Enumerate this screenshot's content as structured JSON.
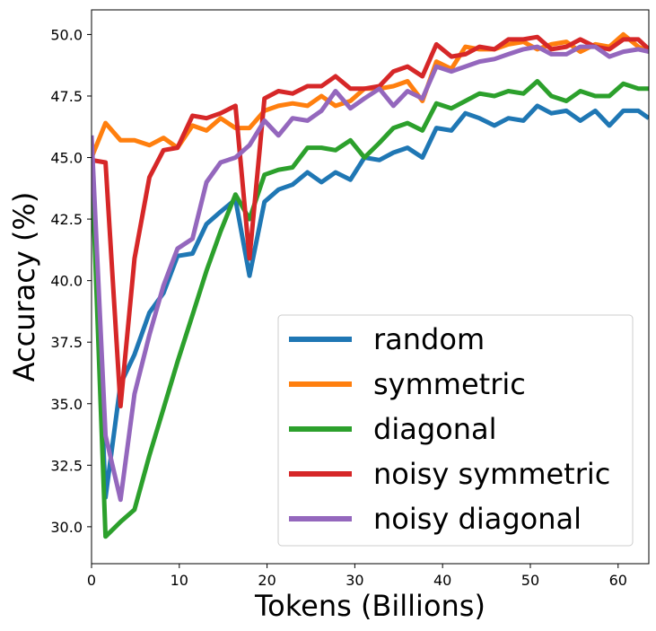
{
  "chart_data": {
    "type": "line",
    "title": "",
    "xlabel": "Tokens (Billions)",
    "ylabel": "Accuracy (%)",
    "xlim": [
      0,
      63.5
    ],
    "ylim": [
      28.5,
      51.0
    ],
    "xticks": [
      0,
      10,
      20,
      30,
      40,
      50,
      60
    ],
    "yticks": [
      30.0,
      32.5,
      35.0,
      37.5,
      40.0,
      42.5,
      45.0,
      47.5,
      50.0
    ],
    "xtick_labels": [
      "0",
      "10",
      "20",
      "30",
      "40",
      "50",
      "60"
    ],
    "ytick_labels": [
      "30.0",
      "32.5",
      "35.0",
      "37.5",
      "40.0",
      "42.5",
      "45.0",
      "47.5",
      "50.0"
    ],
    "grid": false,
    "legend_position": "lower-right",
    "x": [
      0,
      1.6,
      3.3,
      4.9,
      6.6,
      8.2,
      9.8,
      11.5,
      13.1,
      14.7,
      16.4,
      18.0,
      19.7,
      21.3,
      22.9,
      24.6,
      26.2,
      27.8,
      29.5,
      31.1,
      32.8,
      34.4,
      36.0,
      37.7,
      39.3,
      41.0,
      42.6,
      44.2,
      45.9,
      47.5,
      49.2,
      50.8,
      52.4,
      54.1,
      55.7,
      57.4,
      59.0,
      60.6,
      62.3,
      63.5
    ],
    "series": [
      {
        "name": "random",
        "color": "#1f77b4",
        "values": [
          45.0,
          31.2,
          35.8,
          37.0,
          38.7,
          39.5,
          41.0,
          41.1,
          42.3,
          42.8,
          43.3,
          40.2,
          43.2,
          43.7,
          43.9,
          44.4,
          44.0,
          44.4,
          44.1,
          45.0,
          44.9,
          45.2,
          45.4,
          45.0,
          46.2,
          46.1,
          46.8,
          46.6,
          46.3,
          46.6,
          46.5,
          47.1,
          46.8,
          46.9,
          46.5,
          46.9,
          46.3,
          46.9,
          46.9,
          46.6
        ]
      },
      {
        "name": "symmetric",
        "color": "#ff7f0e",
        "values": [
          45.0,
          46.4,
          45.7,
          45.7,
          45.5,
          45.8,
          45.4,
          46.3,
          46.1,
          46.6,
          46.2,
          46.2,
          46.9,
          47.1,
          47.2,
          47.1,
          47.5,
          47.1,
          47.3,
          47.8,
          47.8,
          47.9,
          48.1,
          47.3,
          48.9,
          48.6,
          49.5,
          49.4,
          49.4,
          49.6,
          49.7,
          49.4,
          49.6,
          49.7,
          49.3,
          49.6,
          49.5,
          50.0,
          49.5,
          49.3
        ]
      },
      {
        "name": "diagonal",
        "color": "#2ca02c",
        "values": [
          45.0,
          29.6,
          30.2,
          30.7,
          32.9,
          34.8,
          36.7,
          38.6,
          40.4,
          42.0,
          43.5,
          42.5,
          44.3,
          44.5,
          44.6,
          45.4,
          45.4,
          45.3,
          45.7,
          45.0,
          45.6,
          46.2,
          46.4,
          46.1,
          47.2,
          47.0,
          47.3,
          47.6,
          47.5,
          47.7,
          47.6,
          48.1,
          47.5,
          47.3,
          47.7,
          47.5,
          47.5,
          48.0,
          47.8,
          47.8
        ]
      },
      {
        "name": "noisy symmetric",
        "color": "#d62728",
        "values": [
          44.9,
          44.8,
          34.9,
          40.9,
          44.2,
          45.3,
          45.4,
          46.7,
          46.6,
          46.8,
          47.1,
          40.9,
          47.4,
          47.7,
          47.6,
          47.9,
          47.9,
          48.3,
          47.8,
          47.8,
          47.9,
          48.5,
          48.7,
          48.3,
          49.6,
          49.1,
          49.2,
          49.5,
          49.4,
          49.8,
          49.8,
          49.9,
          49.4,
          49.5,
          49.8,
          49.5,
          49.4,
          49.8,
          49.8,
          49.4
        ]
      },
      {
        "name": "noisy diagonal",
        "color": "#9467bd",
        "values": [
          45.9,
          33.7,
          31.1,
          35.4,
          37.8,
          39.8,
          41.3,
          41.7,
          44.0,
          44.8,
          45.0,
          45.5,
          46.5,
          45.9,
          46.6,
          46.5,
          46.9,
          47.7,
          47.0,
          47.4,
          47.8,
          47.1,
          47.7,
          47.4,
          48.7,
          48.5,
          48.7,
          48.9,
          49.0,
          49.2,
          49.4,
          49.5,
          49.2,
          49.2,
          49.5,
          49.5,
          49.1,
          49.3,
          49.4,
          49.3
        ]
      }
    ]
  }
}
